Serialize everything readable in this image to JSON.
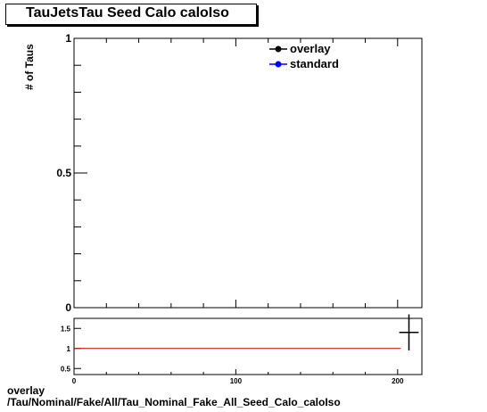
{
  "chart_data": [
    {
      "type": "scatter",
      "title": "TauJetsTau Seed Calo caloIso",
      "ylabel": "# of Taus",
      "xlabel": "",
      "xlim": [
        0,
        215
      ],
      "ylim": [
        0,
        1
      ],
      "yticks": [
        "0",
        "0.5",
        "1"
      ],
      "legend": {
        "placement": "top-right",
        "entries": [
          "overlay",
          "standard"
        ]
      },
      "series": [
        {
          "name": "overlay",
          "color": "#000000",
          "values": []
        },
        {
          "name": "standard",
          "color": "#0000ff",
          "values": []
        }
      ]
    },
    {
      "type": "line",
      "xlim": [
        0,
        215
      ],
      "ylim": [
        0.35,
        1.75
      ],
      "xticks": [
        "0",
        "100",
        "200"
      ],
      "yticks": [
        "0.5",
        "1",
        "1.5"
      ],
      "reference_line": {
        "y": 1,
        "x_from": 0,
        "x_to": 202,
        "color": "#cc0000"
      },
      "ratio_point": {
        "x": 207,
        "y": 1.4,
        "xerr": 6,
        "yerr_low": 0.45,
        "yerr_high": 0.45
      }
    }
  ],
  "footer": {
    "line1": "overlay",
    "line2": "/Tau/Nominal/Fake/All/Tau_Nominal_Fake_All_Seed_Calo_caloIso"
  }
}
